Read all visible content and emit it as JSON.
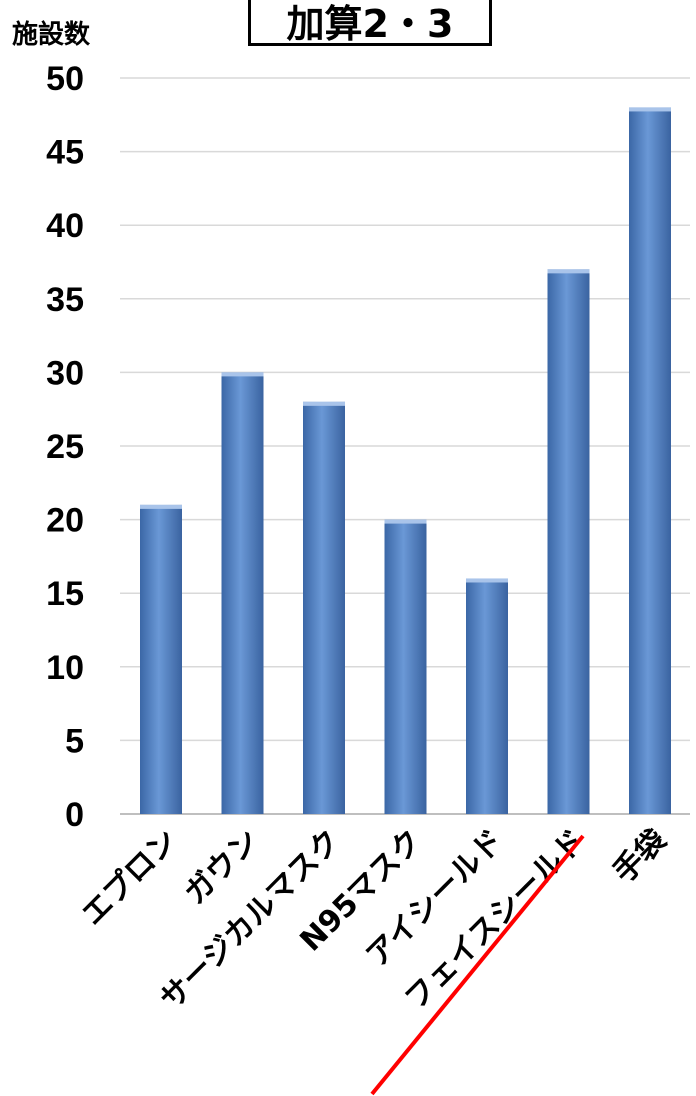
{
  "chart_data": {
    "type": "bar",
    "title": "加算2・3",
    "ylabel": "施設数",
    "xlabel": "",
    "categories": [
      "エプロン",
      "ガウン",
      "サージカルマスク",
      "N95マスク",
      "アイシールド",
      "フェイスシールド",
      "手袋"
    ],
    "values": [
      21,
      30,
      28,
      20,
      16,
      37,
      48
    ],
    "ylim": [
      0,
      50
    ],
    "yticks": [
      0,
      5,
      10,
      15,
      20,
      25,
      30,
      35,
      40,
      45,
      50
    ],
    "grid": true,
    "legend": "none",
    "bar_color": "#4F81BD",
    "annotation_color": "#FF0000"
  }
}
